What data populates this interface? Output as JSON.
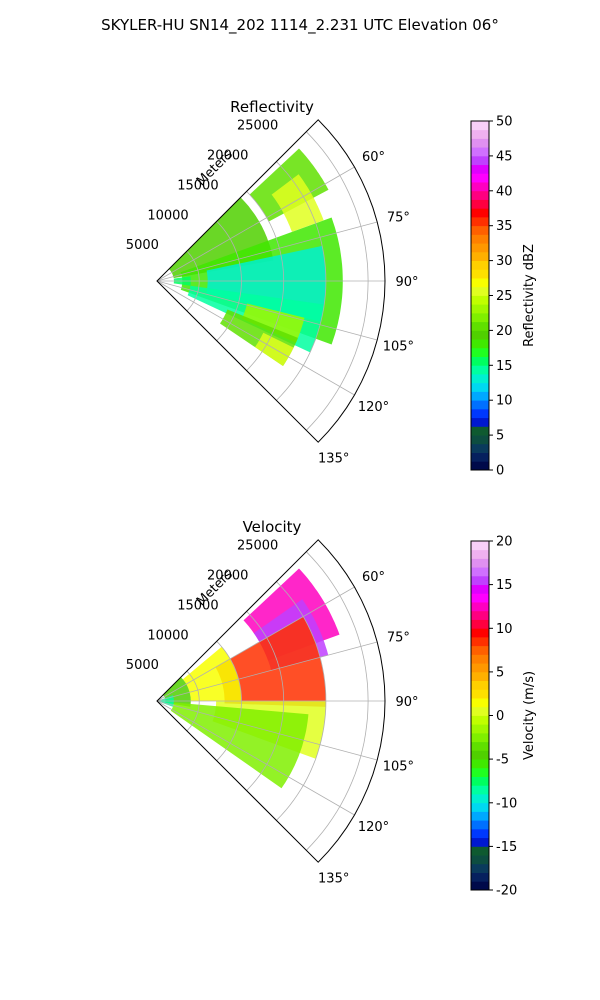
{
  "figure_title": "SKYLER-HU  SN14_202  1114_2.231 UTC Elevation 06°",
  "chart_data": [
    {
      "type": "heatmap",
      "title": "Reflectivity",
      "radial_label": "Meters",
      "radial_ticks": [
        "5000",
        "10000",
        "15000",
        "20000",
        "25000"
      ],
      "radial_tick_values": [
        5000,
        10000,
        15000,
        20000,
        25000
      ],
      "r_max": 27000,
      "azimuth_range": [
        45,
        135
      ],
      "angle_ticks": [
        "60°",
        "75°",
        "90°",
        "105°",
        "120°",
        "135°"
      ],
      "angle_tick_values": [
        60,
        75,
        90,
        105,
        120,
        135
      ],
      "grid": true,
      "colorbar": {
        "label": "Reflectivity dBZ",
        "range": [
          0,
          50
        ],
        "ticks": [
          "0",
          "5",
          "10",
          "15",
          "20",
          "25",
          "30",
          "35",
          "40",
          "45",
          "50"
        ],
        "tick_values": [
          0,
          5,
          10,
          15,
          20,
          25,
          30,
          35,
          40,
          45,
          50
        ],
        "colors": [
          "#000a4a",
          "#06205e",
          "#0a3a5c",
          "#0d4d40",
          "#0f5a30",
          "#0018d0",
          "#0038ff",
          "#0070ff",
          "#00a8ff",
          "#00d8f0",
          "#00f0d0",
          "#00ffa0",
          "#00ff60",
          "#20ff20",
          "#40e800",
          "#50d000",
          "#60e000",
          "#80f000",
          "#a0f800",
          "#c0ff00",
          "#e0ff20",
          "#f8ff00",
          "#ffe000",
          "#ffd000",
          "#ffb000",
          "#ff9800",
          "#ff8000",
          "#ff6000",
          "#ff3000",
          "#ff0000",
          "#ff0040",
          "#ff0080",
          "#ff00c0",
          "#ff00ff",
          "#e000ff",
          "#c040ff",
          "#d070ff",
          "#e090f0",
          "#f0b0f0",
          "#f8d0f8"
        ]
      },
      "value_bands": [
        {
          "sector": [
            47,
            62
          ],
          "r": [
            15000,
            23000
          ],
          "value": 21
        },
        {
          "sector": [
            53,
            70
          ],
          "r": [
            17000,
            21000
          ],
          "value": 26
        },
        {
          "sector": [
            45,
            80
          ],
          "r": [
            2000,
            14000
          ],
          "value": 19
        },
        {
          "sector": [
            70,
            110
          ],
          "r": [
            3000,
            22000
          ],
          "value": 18
        },
        {
          "sector": [
            78,
            104
          ],
          "r": [
            6000,
            20000
          ],
          "value": 13
        },
        {
          "sector": [
            82,
            98
          ],
          "r": [
            2000,
            4000
          ],
          "value": 15
        },
        {
          "sector": [
            98,
            115
          ],
          "r": [
            4000,
            20000
          ],
          "value": 14
        },
        {
          "sector": [
            104,
            114
          ],
          "r": [
            11000,
            18000
          ],
          "value": 23
        },
        {
          "sector": [
            112,
            124
          ],
          "r": [
            9000,
            18000
          ],
          "value": 21
        },
        {
          "sector": [
            116,
            124
          ],
          "r": [
            14000,
            18000
          ],
          "value": 26
        }
      ]
    },
    {
      "type": "heatmap",
      "title": "Velocity",
      "radial_label": "Meters",
      "radial_ticks": [
        "5000",
        "10000",
        "15000",
        "20000",
        "25000"
      ],
      "radial_tick_values": [
        5000,
        10000,
        15000,
        20000,
        25000
      ],
      "r_max": 27000,
      "azimuth_range": [
        45,
        135
      ],
      "angle_ticks": [
        "60°",
        "75°",
        "90°",
        "105°",
        "120°",
        "135°"
      ],
      "angle_tick_values": [
        60,
        75,
        90,
        105,
        120,
        135
      ],
      "grid": true,
      "colorbar": {
        "label": "Velocity (m/s)",
        "range": [
          -20,
          20
        ],
        "ticks": [
          "-20",
          "-15",
          "-10",
          "-5",
          "0",
          "5",
          "10",
          "15",
          "20"
        ],
        "tick_values": [
          -20,
          -15,
          -10,
          -5,
          0,
          5,
          10,
          15,
          20
        ],
        "colors": [
          "#000a4a",
          "#06205e",
          "#0a3a5c",
          "#0d4d40",
          "#0f5a30",
          "#0018d0",
          "#0038ff",
          "#0070ff",
          "#00a8ff",
          "#00d8f0",
          "#00f0d0",
          "#00ffa0",
          "#00ff60",
          "#20ff20",
          "#40e800",
          "#50d000",
          "#60e000",
          "#80f000",
          "#a0f800",
          "#c0ff00",
          "#e0ff20",
          "#f8ff00",
          "#ffe000",
          "#ffd000",
          "#ffb000",
          "#ff9800",
          "#ff8000",
          "#ff6000",
          "#ff3000",
          "#ff0000",
          "#ff0040",
          "#ff0080",
          "#ff00c0",
          "#ff00ff",
          "#e000ff",
          "#c040ff",
          "#d070ff",
          "#e090f0",
          "#f0b0f0",
          "#f8d0f8"
        ]
      },
      "value_bands": [
        {
          "sector": [
            47,
            70
          ],
          "r": [
            14000,
            23000
          ],
          "value": 12
        },
        {
          "sector": [
            55,
            75
          ],
          "r": [
            14000,
            21000
          ],
          "value": 15
        },
        {
          "sector": [
            60,
            92
          ],
          "r": [
            8000,
            20000
          ],
          "value": 8
        },
        {
          "sector": [
            50,
            90
          ],
          "r": [
            4000,
            10000
          ],
          "value": 1
        },
        {
          "sector": [
            90,
            110
          ],
          "r": [
            7000,
            20000
          ],
          "value": 0
        },
        {
          "sector": [
            45,
            100
          ],
          "r": [
            1000,
            4000
          ],
          "value": -5
        },
        {
          "sector": [
            70,
            110
          ],
          "r": [
            0,
            2000
          ],
          "value": -9
        },
        {
          "sector": [
            95,
            125
          ],
          "r": [
            2000,
            18000
          ],
          "value": -3
        }
      ]
    }
  ]
}
